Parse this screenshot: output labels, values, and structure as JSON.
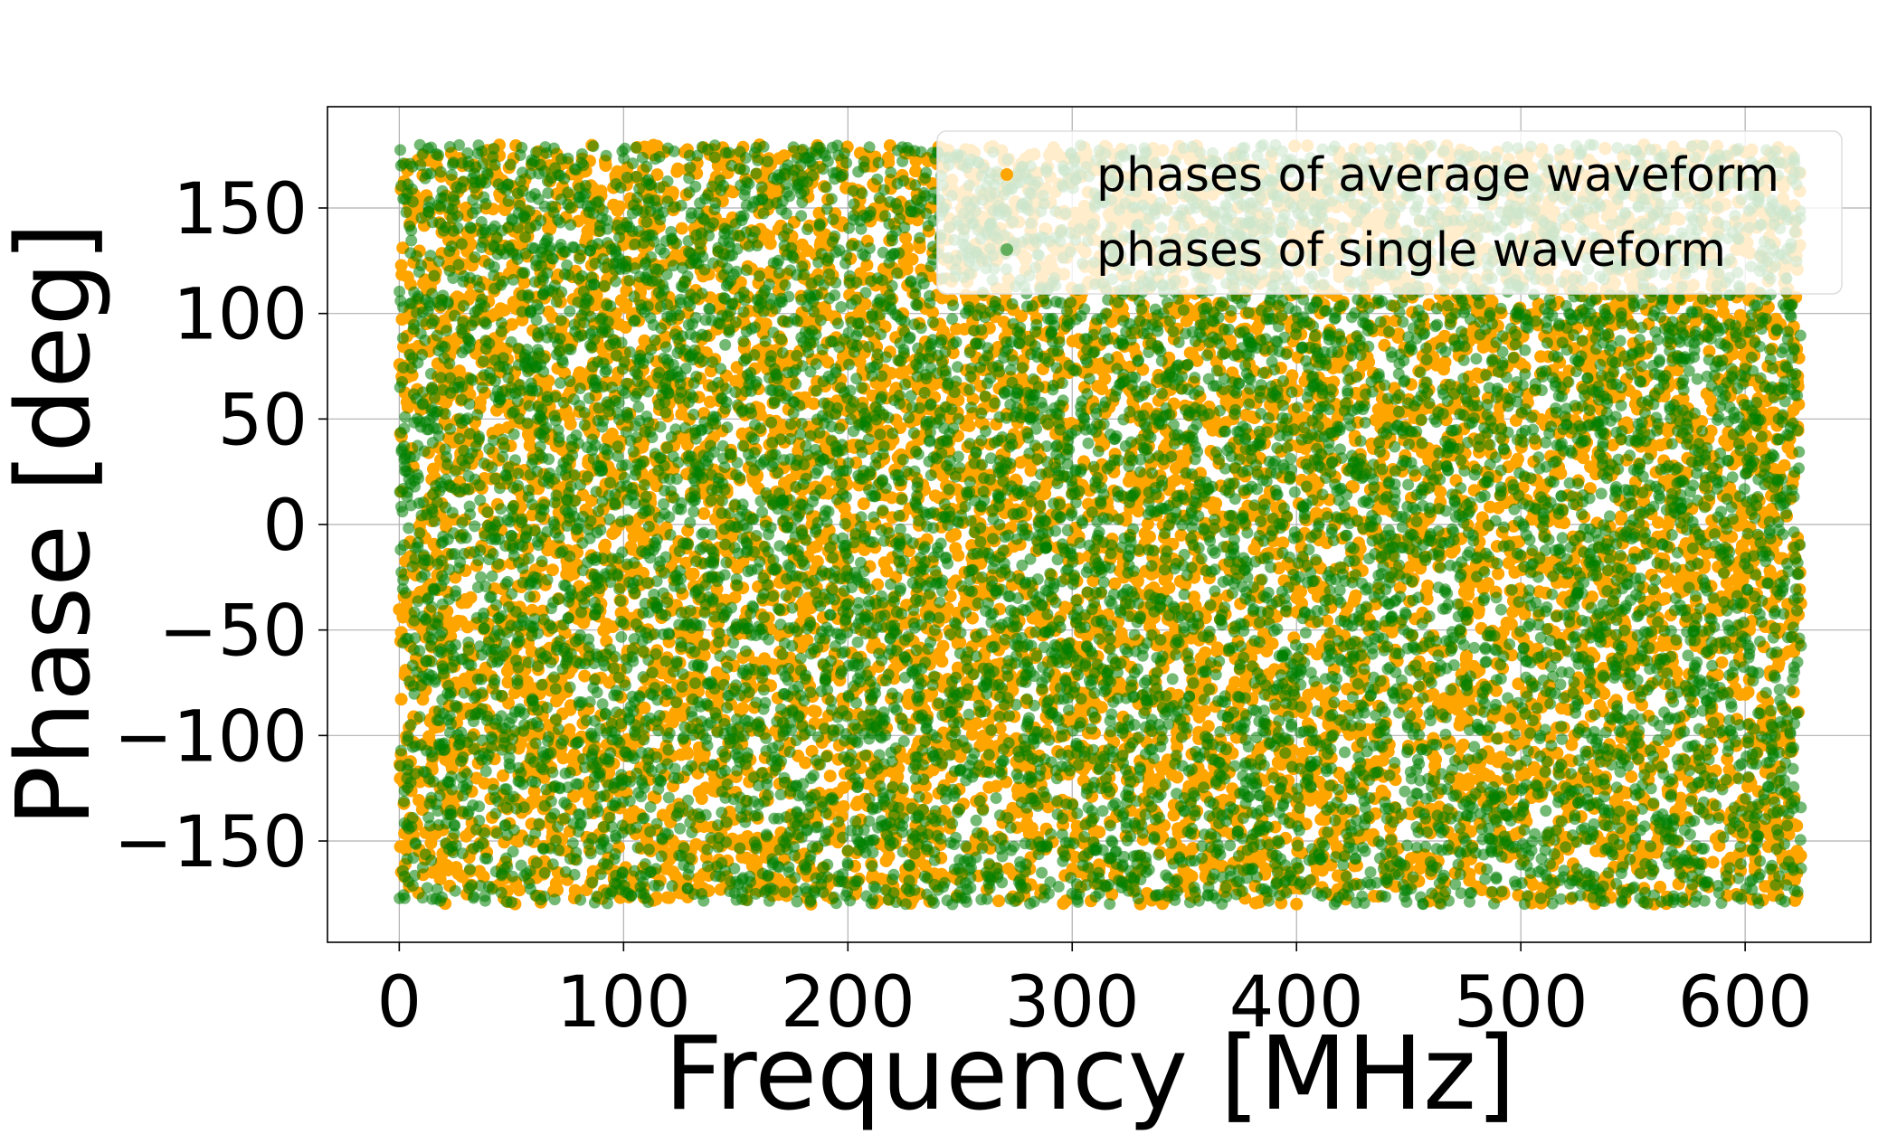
{
  "chart_data": {
    "type": "scatter",
    "title": "",
    "xlabel": "Frequency [MHz]",
    "ylabel": "Phase [deg]",
    "xlim": [
      -32,
      656
    ],
    "ylim": [
      -198,
      198
    ],
    "xticks": [
      0,
      100,
      200,
      300,
      400,
      500,
      600
    ],
    "yticks": [
      -150,
      -100,
      -50,
      0,
      50,
      100,
      150
    ],
    "xtick_labels": [
      "0",
      "100",
      "200",
      "300",
      "400",
      "500",
      "600"
    ],
    "ytick_labels": [
      "−150",
      "−100",
      "−50",
      "0",
      "50",
      "100",
      "150"
    ],
    "grid": true,
    "legend_position": "top-right",
    "series": [
      {
        "name": "phases of average waveform",
        "color": "#FFA500",
        "x_range": [
          0,
          625
        ],
        "y_range": [
          -180,
          180
        ],
        "point_count": 8000,
        "distribution": "uniform random phase vs frequency"
      },
      {
        "name": "phases of single waveform",
        "color": "#008000",
        "x_range": [
          0,
          625
        ],
        "y_range": [
          -180,
          180
        ],
        "point_count": 9000,
        "distribution": "uniform random phase vs frequency"
      }
    ]
  }
}
